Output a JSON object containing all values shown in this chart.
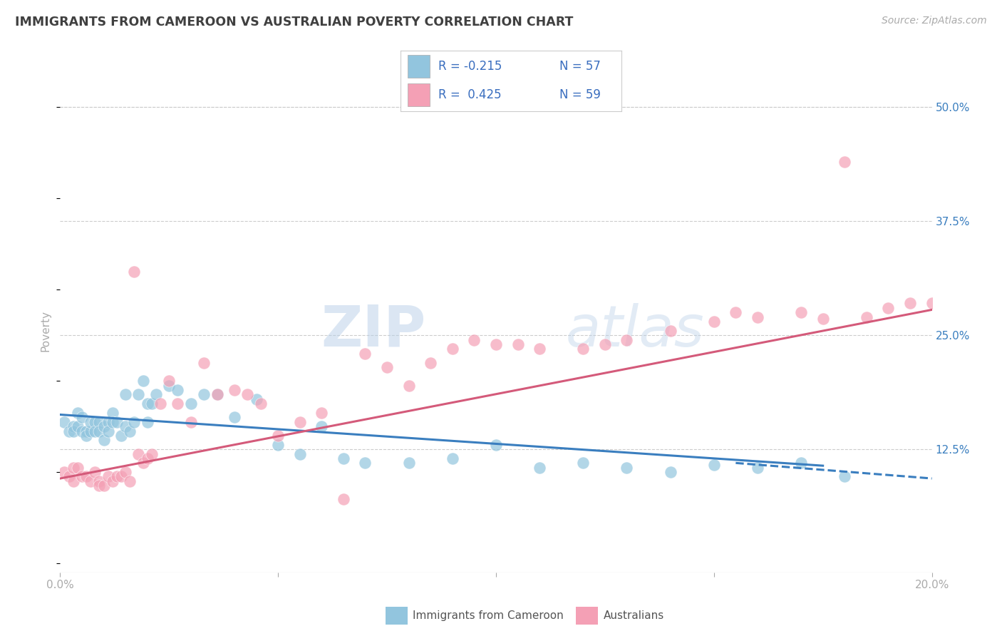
{
  "title": "IMMIGRANTS FROM CAMEROON VS AUSTRALIAN POVERTY CORRELATION CHART",
  "source_text": "Source: ZipAtlas.com",
  "ylabel": "Poverty",
  "watermark_zip": "ZIP",
  "watermark_atlas": "atlas",
  "xlim": [
    0.0,
    0.2
  ],
  "ylim": [
    -0.01,
    0.52
  ],
  "yticks_right": [
    0.125,
    0.25,
    0.375,
    0.5
  ],
  "ytick_labels_right": [
    "12.5%",
    "25.0%",
    "37.5%",
    "50.0%"
  ],
  "legend_blue_r": "R = -0.215",
  "legend_blue_n": "N = 57",
  "legend_pink_r": "R =  0.425",
  "legend_pink_n": "N = 59",
  "blue_color": "#92c5de",
  "pink_color": "#f4a0b5",
  "blue_line_color": "#3a7ebf",
  "pink_line_color": "#d45a7a",
  "legend_text_color": "#3a6ebf",
  "title_color": "#404040",
  "axis_color": "#aaaaaa",
  "grid_color": "#cccccc",
  "background_color": "#ffffff",
  "blue_scatter_x": [
    0.001,
    0.002,
    0.003,
    0.003,
    0.004,
    0.004,
    0.005,
    0.005,
    0.006,
    0.006,
    0.007,
    0.007,
    0.008,
    0.008,
    0.009,
    0.009,
    0.01,
    0.01,
    0.011,
    0.011,
    0.012,
    0.012,
    0.013,
    0.014,
    0.015,
    0.015,
    0.016,
    0.017,
    0.018,
    0.019,
    0.02,
    0.02,
    0.021,
    0.022,
    0.025,
    0.027,
    0.03,
    0.033,
    0.036,
    0.04,
    0.045,
    0.05,
    0.055,
    0.06,
    0.065,
    0.07,
    0.08,
    0.09,
    0.1,
    0.11,
    0.12,
    0.13,
    0.14,
    0.15,
    0.16,
    0.17,
    0.18
  ],
  "blue_scatter_y": [
    0.155,
    0.145,
    0.15,
    0.145,
    0.15,
    0.165,
    0.145,
    0.16,
    0.145,
    0.14,
    0.145,
    0.155,
    0.155,
    0.145,
    0.155,
    0.145,
    0.15,
    0.135,
    0.155,
    0.145,
    0.165,
    0.155,
    0.155,
    0.14,
    0.15,
    0.185,
    0.145,
    0.155,
    0.185,
    0.2,
    0.175,
    0.155,
    0.175,
    0.185,
    0.195,
    0.19,
    0.175,
    0.185,
    0.185,
    0.16,
    0.18,
    0.13,
    0.12,
    0.15,
    0.115,
    0.11,
    0.11,
    0.115,
    0.13,
    0.105,
    0.11,
    0.105,
    0.1,
    0.108,
    0.105,
    0.11,
    0.095
  ],
  "pink_scatter_x": [
    0.001,
    0.002,
    0.003,
    0.003,
    0.004,
    0.005,
    0.006,
    0.007,
    0.008,
    0.009,
    0.009,
    0.01,
    0.011,
    0.012,
    0.013,
    0.014,
    0.015,
    0.016,
    0.017,
    0.018,
    0.019,
    0.02,
    0.021,
    0.023,
    0.025,
    0.027,
    0.03,
    0.033,
    0.036,
    0.04,
    0.043,
    0.046,
    0.05,
    0.055,
    0.06,
    0.065,
    0.07,
    0.075,
    0.08,
    0.085,
    0.09,
    0.095,
    0.1,
    0.105,
    0.11,
    0.12,
    0.125,
    0.13,
    0.14,
    0.15,
    0.155,
    0.16,
    0.17,
    0.175,
    0.18,
    0.185,
    0.19,
    0.195,
    0.2
  ],
  "pink_scatter_y": [
    0.1,
    0.095,
    0.105,
    0.09,
    0.105,
    0.095,
    0.095,
    0.09,
    0.1,
    0.09,
    0.085,
    0.085,
    0.095,
    0.09,
    0.095,
    0.095,
    0.1,
    0.09,
    0.32,
    0.12,
    0.11,
    0.115,
    0.12,
    0.175,
    0.2,
    0.175,
    0.155,
    0.22,
    0.185,
    0.19,
    0.185,
    0.175,
    0.14,
    0.155,
    0.165,
    0.07,
    0.23,
    0.215,
    0.195,
    0.22,
    0.235,
    0.245,
    0.24,
    0.24,
    0.235,
    0.235,
    0.24,
    0.245,
    0.255,
    0.265,
    0.275,
    0.27,
    0.275,
    0.268,
    0.44,
    0.27,
    0.28,
    0.285,
    0.285
  ],
  "blue_trend_x": [
    0.0,
    0.175
  ],
  "blue_trend_y": [
    0.163,
    0.107
  ],
  "blue_dash_trend_x": [
    0.155,
    0.2
  ],
  "blue_dash_trend_y": [
    0.11,
    0.093
  ],
  "pink_trend_x": [
    0.0,
    0.2
  ],
  "pink_trend_y": [
    0.093,
    0.278
  ]
}
